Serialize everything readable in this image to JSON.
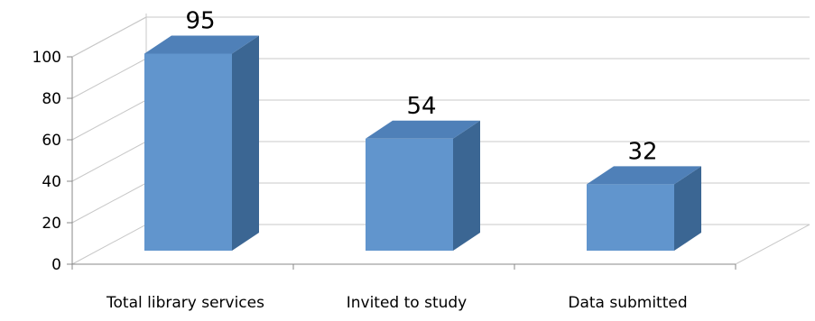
{
  "chart_data": {
    "type": "bar",
    "title": "",
    "xlabel": "",
    "ylabel": "",
    "categories": [
      "Total library services",
      "Invited to study",
      "Data submitted"
    ],
    "values": [
      95,
      54,
      32
    ],
    "data_labels": [
      "95",
      "54",
      "32"
    ],
    "ylim": [
      0,
      100
    ],
    "y_ticks": [
      "0",
      "20",
      "40",
      "60",
      "80",
      "100"
    ],
    "grid": true,
    "legend": "none",
    "style": "3d-column",
    "colors": {
      "bar_front": "#6195cd",
      "bar_top": "#4f80b8",
      "bar_side": "#3b6693",
      "grid": "#c8c8c8",
      "axis": "#888888"
    }
  }
}
